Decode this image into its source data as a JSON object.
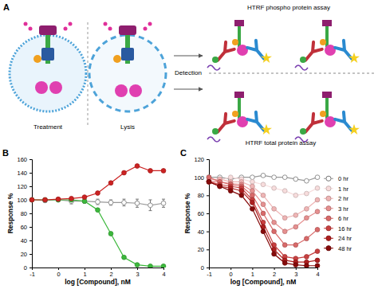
{
  "panel_a": {
    "label": "A",
    "treatment": "Treatment",
    "lysis": "Lysis",
    "detection": "Detection",
    "phospho_assay": "HTRF phospho protein assay",
    "total_assay": "HTRF total protein assay"
  },
  "chart_data": [
    {
      "type": "line",
      "title": "B",
      "x_label": "log [Compound], nM",
      "y_label": "Response %",
      "x": [
        -1,
        -0.5,
        0,
        0.5,
        1,
        1.5,
        2,
        2.5,
        3,
        3.5,
        4
      ],
      "xlim": [
        -1,
        4
      ],
      "xticks": [
        -1,
        0,
        1,
        2,
        3,
        4
      ],
      "ylim": [
        0,
        160
      ],
      "yticks": [
        0,
        20,
        40,
        60,
        80,
        100,
        120,
        140,
        160
      ],
      "grid": false,
      "marker": "circle",
      "series": [
        {
          "color": "#ffffff",
          "values": [
            100,
            99,
            100,
            98,
            98,
            97,
            96,
            96,
            95,
            92,
            95
          ],
          "errors": [
            3,
            3,
            3,
            4,
            3,
            4,
            4,
            5,
            6,
            8,
            6
          ]
        },
        {
          "color": "#3cb83c",
          "values": [
            100,
            100,
            100,
            100,
            98,
            85,
            50,
            15,
            4,
            2,
            2
          ]
        },
        {
          "color": "#cc2222",
          "values": [
            100,
            100,
            101,
            102,
            104,
            110,
            125,
            140,
            150,
            143,
            143
          ]
        }
      ]
    },
    {
      "type": "line",
      "title": "C",
      "x_label": "log [Compound], nM",
      "y_label": "Response %",
      "x": [
        -1,
        -0.5,
        0,
        0.5,
        1,
        1.5,
        2,
        2.5,
        3,
        3.5,
        4
      ],
      "xlim": [
        -1,
        4
      ],
      "xticks": [
        -1,
        0,
        1,
        2,
        3,
        4
      ],
      "ylim": [
        0,
        120
      ],
      "yticks": [
        0,
        20,
        40,
        60,
        80,
        100,
        120
      ],
      "grid": false,
      "marker": "circle",
      "legend": "right",
      "series": [
        {
          "name": "0 hr",
          "color": "#ffffff",
          "values": [
            100,
            100,
            98,
            100,
            100,
            102,
            100,
            100,
            98,
            96,
            100
          ]
        },
        {
          "name": "1 hr",
          "color": "#f7dcdc",
          "values": [
            95,
            97,
            100,
            98,
            95,
            92,
            88,
            85,
            80,
            82,
            88
          ]
        },
        {
          "name": "2 hr",
          "color": "#efb5b5",
          "values": [
            97,
            98,
            95,
            95,
            90,
            80,
            65,
            55,
            58,
            65,
            75
          ]
        },
        {
          "name": "3 hr",
          "color": "#e69090",
          "values": [
            95,
            95,
            93,
            92,
            85,
            70,
            50,
            40,
            45,
            55,
            62
          ]
        },
        {
          "name": "6 hr",
          "color": "#d96a6a",
          "values": [
            100,
            95,
            92,
            90,
            80,
            60,
            40,
            25,
            25,
            32,
            42
          ]
        },
        {
          "name": "16 hr",
          "color": "#c84040",
          "values": [
            95,
            92,
            90,
            88,
            75,
            50,
            25,
            12,
            10,
            12,
            18
          ]
        },
        {
          "name": "24 hr",
          "color": "#ad1f1f",
          "values": [
            95,
            90,
            88,
            85,
            72,
            45,
            20,
            8,
            6,
            6,
            8
          ]
        },
        {
          "name": "48 hr",
          "color": "#860a0a",
          "values": [
            95,
            90,
            85,
            80,
            65,
            40,
            15,
            5,
            3,
            2,
            2
          ]
        }
      ]
    }
  ]
}
